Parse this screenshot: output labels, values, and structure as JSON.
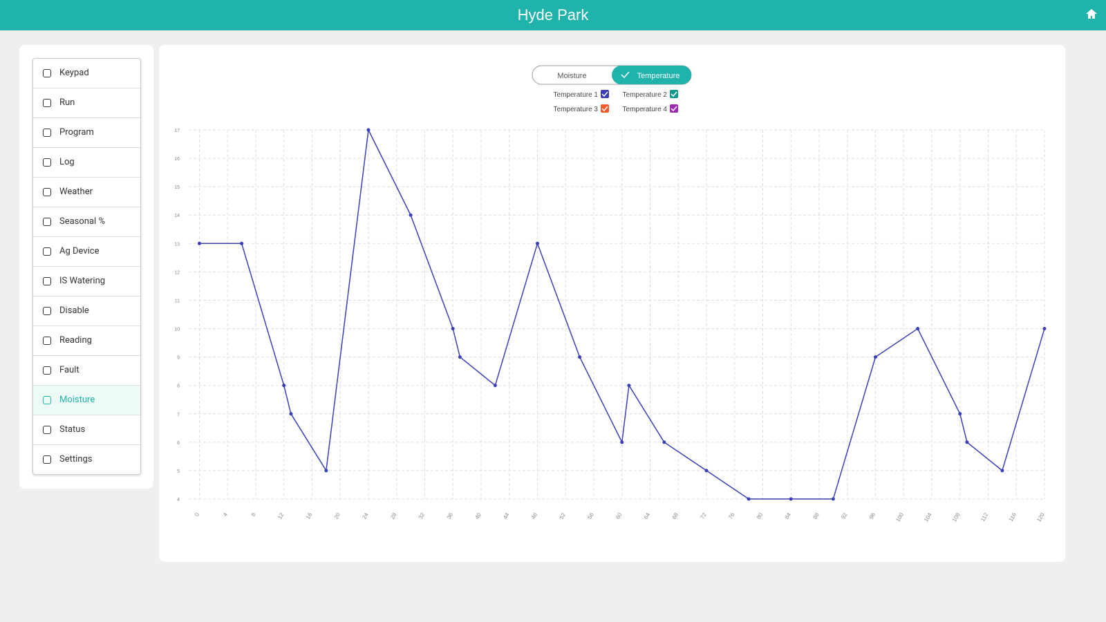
{
  "header": {
    "title": "Hyde Park"
  },
  "sidebar": {
    "items": [
      "Keypad",
      "Run",
      "Program",
      "Log",
      "Weather",
      "Seasonal %",
      "Ag Device",
      "IS Watering",
      "Disable",
      "Reading",
      "Fault",
      "Moisture",
      "Status",
      "Settings"
    ],
    "active_index": 11
  },
  "toggle": {
    "options": [
      "Moisture",
      "Temperature"
    ],
    "selected_index": 1
  },
  "chart_data": {
    "type": "line",
    "series": [
      {
        "name": "Temperature 1",
        "color": "#3a3fb5",
        "x": [
          0,
          6,
          12,
          13,
          18,
          24,
          30,
          36,
          37,
          42,
          48,
          54,
          60,
          61,
          66,
          72,
          78,
          84,
          90,
          96,
          102,
          108,
          109,
          114,
          120
        ],
        "values": [
          13,
          13,
          8,
          7,
          5,
          17,
          14,
          10,
          9,
          8,
          13,
          9,
          6,
          8,
          6,
          5,
          4,
          4,
          4,
          9,
          10,
          7,
          6,
          5,
          10
        ]
      },
      {
        "name": "Temperature 2",
        "color": "#139a8c"
      },
      {
        "name": "Temperature 3",
        "color": "#f05a28"
      },
      {
        "name": "Temperature 4",
        "color": "#9c27b0"
      }
    ],
    "xlim": [
      -2.5,
      120
    ],
    "xticks": [
      0,
      4,
      8,
      12,
      16,
      20,
      24,
      28,
      32,
      36,
      40,
      44,
      48,
      52,
      56,
      60,
      64,
      68,
      72,
      76,
      80,
      84,
      88,
      92,
      96,
      100,
      104,
      108,
      112,
      116,
      120
    ],
    "ylim": [
      4,
      17
    ],
    "yticks": [
      4,
      5,
      6,
      7,
      8,
      9,
      10,
      11,
      12,
      13,
      14,
      15,
      16,
      17
    ],
    "grid": true
  }
}
